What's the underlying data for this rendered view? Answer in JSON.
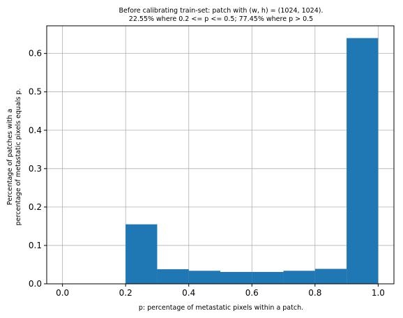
{
  "chart_data": {
    "type": "bar",
    "title_lines": [
      "Before calibrating train-set: patch with (w, h) = (1024, 1024).",
      "22.55% where 0.2 <= p <= 0.5; 77.45% where p > 0.5"
    ],
    "xlabel": "p: percentage of metastatic pixels within a patch.",
    "ylabel_lines": [
      "Percentage of patches with a",
      "percentage of metastatic pixels equals p."
    ],
    "xlim": [
      -0.05,
      1.05
    ],
    "ylim": [
      0,
      0.672
    ],
    "xticks": [
      0.0,
      0.2,
      0.4,
      0.6,
      0.8,
      1.0
    ],
    "xtick_labels": [
      "0.0",
      "0.2",
      "0.4",
      "0.6",
      "0.8",
      "1.0"
    ],
    "yticks": [
      0.0,
      0.1,
      0.2,
      0.3,
      0.4,
      0.5,
      0.6
    ],
    "ytick_labels": [
      "0.0",
      "0.1",
      "0.2",
      "0.3",
      "0.4",
      "0.5",
      "0.6"
    ],
    "grid": true,
    "bin_edges": [
      0.0,
      0.1,
      0.2,
      0.3,
      0.4,
      0.5,
      0.6,
      0.7,
      0.8,
      0.9,
      1.0
    ],
    "values": [
      0.0,
      0.0,
      0.155,
      0.038,
      0.034,
      0.031,
      0.031,
      0.034,
      0.039,
      0.64
    ],
    "bar_color": "#1f77b4",
    "grid_color": "#b0b0b0"
  }
}
